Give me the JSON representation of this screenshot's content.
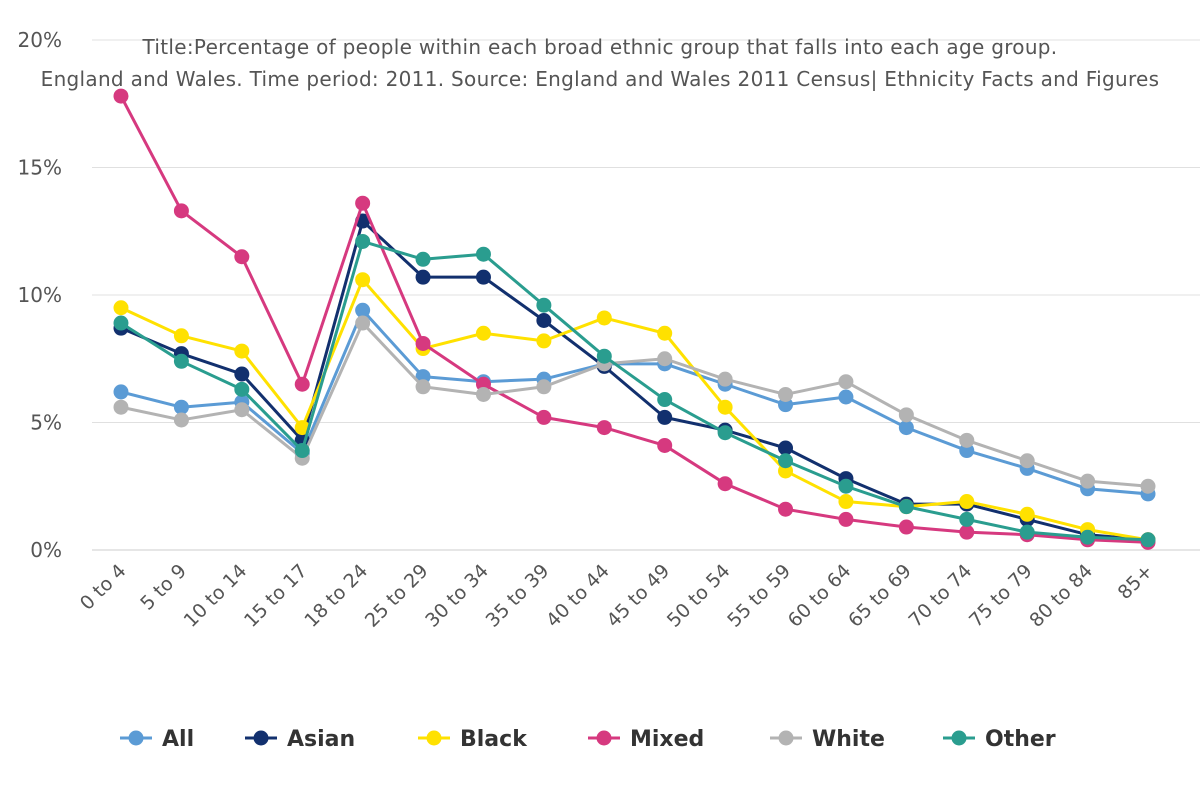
{
  "chart_data": {
    "type": "line",
    "title_lines": [
      "Title:Percentage of people within each broad ethnic group that falls into each age group.",
      "England and Wales. Time period: 2011. Source: England and Wales 2011 Census| Ethnicity Facts and Figures"
    ],
    "xlabel": "",
    "ylabel": "",
    "ylim": [
      0,
      20
    ],
    "yticks": [
      {
        "value": 0,
        "label": "0%"
      },
      {
        "value": 5,
        "label": "5%"
      },
      {
        "value": 10,
        "label": "10%"
      },
      {
        "value": 15,
        "label": "15%"
      },
      {
        "value": 20,
        "label": "20%"
      }
    ],
    "categories": [
      "0 to 4",
      "5 to 9",
      "10 to 14",
      "15 to 17",
      "18 to 24",
      "25 to 29",
      "30 to 34",
      "35 to 39",
      "40 to 44",
      "45 to 49",
      "50 to 54",
      "55 to 59",
      "60 to 64",
      "65 to 69",
      "70 to 74",
      "75 to 79",
      "80 to 84",
      "85+"
    ],
    "grid": true,
    "legend_position": "bottom",
    "series": [
      {
        "name": "All",
        "color": "#5b9bd5",
        "values": [
          6.2,
          5.6,
          5.8,
          3.8,
          9.4,
          6.8,
          6.6,
          6.7,
          7.3,
          7.3,
          6.5,
          5.7,
          6.0,
          4.8,
          3.9,
          3.2,
          2.4,
          2.2
        ]
      },
      {
        "name": "Asian",
        "color": "#12306e",
        "values": [
          8.7,
          7.7,
          6.9,
          4.3,
          12.9,
          10.7,
          10.7,
          9.0,
          7.2,
          5.2,
          4.7,
          4.0,
          2.8,
          1.8,
          1.8,
          1.2,
          0.6,
          0.4
        ]
      },
      {
        "name": "Black",
        "color": "#ffe100",
        "values": [
          9.5,
          8.4,
          7.8,
          4.8,
          10.6,
          7.9,
          8.5,
          8.2,
          9.1,
          8.5,
          5.6,
          3.1,
          1.9,
          1.7,
          1.9,
          1.4,
          0.8,
          0.4
        ]
      },
      {
        "name": "Mixed",
        "color": "#d6397f",
        "values": [
          17.8,
          13.3,
          11.5,
          6.5,
          13.6,
          8.1,
          6.5,
          5.2,
          4.8,
          4.1,
          2.6,
          1.6,
          1.2,
          0.9,
          0.7,
          0.6,
          0.4,
          0.3
        ]
      },
      {
        "name": "White",
        "color": "#b3b3b3",
        "values": [
          5.6,
          5.1,
          5.5,
          3.6,
          8.9,
          6.4,
          6.1,
          6.4,
          7.3,
          7.5,
          6.7,
          6.1,
          6.6,
          5.3,
          4.3,
          3.5,
          2.7,
          2.5
        ]
      },
      {
        "name": "Other",
        "color": "#2a9d8f",
        "values": [
          8.9,
          7.4,
          6.3,
          3.9,
          12.1,
          11.4,
          11.6,
          9.6,
          7.6,
          5.9,
          4.6,
          3.5,
          2.5,
          1.7,
          1.2,
          0.7,
          0.5,
          0.4
        ]
      }
    ]
  }
}
